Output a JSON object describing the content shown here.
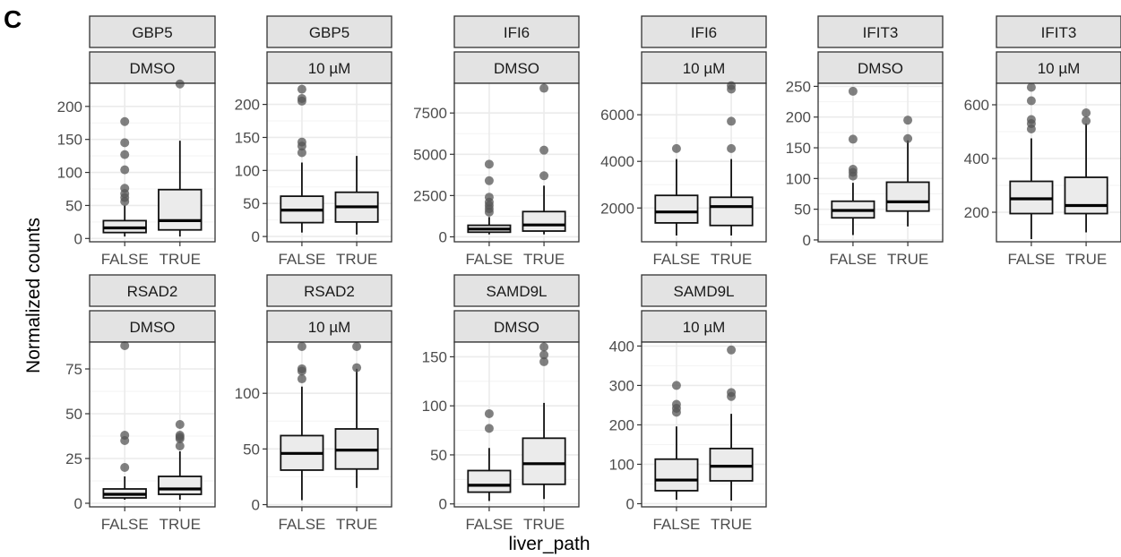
{
  "figure": {
    "panel_letter": "C",
    "ylabel": "Normalized counts",
    "xlabel": "liver_path"
  },
  "colors": {
    "strip_fill": "#e3e3e3",
    "box_fill": "#ebebeb",
    "outlier": "#555555",
    "grid_major": "#ebebeb",
    "panel_border": "#333333"
  },
  "chart_data": [
    {
      "type": "box",
      "gene": "GBP5",
      "treatment": "DMSO",
      "categories": [
        "FALSE",
        "TRUE"
      ],
      "ylim": [
        -5,
        235
      ],
      "yticks": [
        0,
        50,
        100,
        150,
        200
      ],
      "boxes": [
        {
          "min": 3,
          "q1": 9,
          "median": 16,
          "q3": 27,
          "max": 50,
          "outliers": [
            56,
            62,
            68,
            76,
            104,
            127,
            145,
            177
          ]
        },
        {
          "min": 3,
          "q1": 13,
          "median": 27,
          "q3": 74,
          "max": 148,
          "outliers": [
            234
          ]
        }
      ]
    },
    {
      "type": "box",
      "gene": "GBP5",
      "treatment": "10 µM",
      "categories": [
        "FALSE",
        "TRUE"
      ],
      "ylim": [
        -8,
        232
      ],
      "yticks": [
        0,
        50,
        100,
        150,
        200
      ],
      "boxes": [
        {
          "min": 6,
          "q1": 21,
          "median": 40,
          "q3": 61,
          "max": 112,
          "outliers": [
            127,
            137,
            143,
            205,
            209,
            223
          ]
        },
        {
          "min": 3,
          "q1": 22,
          "median": 45,
          "q3": 67,
          "max": 122,
          "outliers": []
        }
      ]
    },
    {
      "type": "box",
      "gene": "IFI6",
      "treatment": "DMSO",
      "categories": [
        "FALSE",
        "TRUE"
      ],
      "ylim": [
        -300,
        9300
      ],
      "yticks": [
        0,
        2500,
        5000,
        7500
      ],
      "boxes": [
        {
          "min": 150,
          "q1": 280,
          "median": 470,
          "q3": 700,
          "max": 1200,
          "outliers": [
            1500,
            1700,
            1900,
            2100,
            2400,
            3400,
            4400
          ]
        },
        {
          "min": 150,
          "q1": 350,
          "median": 720,
          "q3": 1530,
          "max": 3100,
          "outliers": [
            3700,
            5250,
            9000
          ]
        }
      ]
    },
    {
      "type": "box",
      "gene": "IFI6",
      "treatment": "10 µM",
      "categories": [
        "FALSE",
        "TRUE"
      ],
      "ylim": [
        550,
        7350
      ],
      "yticks": [
        2000,
        4000,
        6000
      ],
      "boxes": [
        {
          "min": 820,
          "q1": 1360,
          "median": 1830,
          "q3": 2540,
          "max": 4100,
          "outliers": [
            4550
          ]
        },
        {
          "min": 820,
          "q1": 1250,
          "median": 2060,
          "q3": 2460,
          "max": 4100,
          "outliers": [
            4550,
            5720,
            7100,
            7250
          ]
        }
      ]
    },
    {
      "type": "box",
      "gene": "IFIT3",
      "treatment": "DMSO",
      "categories": [
        "FALSE",
        "TRUE"
      ],
      "ylim": [
        -3,
        255
      ],
      "yticks": [
        0,
        50,
        100,
        150,
        200,
        250
      ],
      "boxes": [
        {
          "min": 8,
          "q1": 36,
          "median": 48,
          "q3": 63,
          "max": 93,
          "outliers": [
            104,
            110,
            115,
            164,
            242
          ]
        },
        {
          "min": 22,
          "q1": 47,
          "median": 62,
          "q3": 94,
          "max": 162,
          "outliers": [
            165,
            195
          ]
        }
      ]
    },
    {
      "type": "box",
      "gene": "IFIT3",
      "treatment": "10 µM",
      "categories": [
        "FALSE",
        "TRUE"
      ],
      "ylim": [
        90,
        680
      ],
      "yticks": [
        200,
        400,
        600
      ],
      "boxes": [
        {
          "min": 100,
          "q1": 195,
          "median": 250,
          "q3": 315,
          "max": 475,
          "outliers": [
            510,
            530,
            545,
            615,
            665
          ]
        },
        {
          "min": 125,
          "q1": 195,
          "median": 225,
          "q3": 330,
          "max": 530,
          "outliers": [
            540,
            570
          ]
        }
      ]
    },
    {
      "type": "box",
      "gene": "RSAD2",
      "treatment": "DMSO",
      "categories": [
        "FALSE",
        "TRUE"
      ],
      "ylim": [
        -2,
        90
      ],
      "yticks": [
        0,
        25,
        50,
        75
      ],
      "boxes": [
        {
          "min": 2,
          "q1": 3,
          "median": 5,
          "q3": 8,
          "max": 15,
          "outliers": [
            20,
            35,
            38,
            88
          ]
        },
        {
          "min": 2,
          "q1": 5,
          "median": 8,
          "q3": 15,
          "max": 29,
          "outliers": [
            32,
            36,
            37,
            38,
            44
          ]
        }
      ]
    },
    {
      "type": "box",
      "gene": "RSAD2",
      "treatment": "10 µM",
      "categories": [
        "FALSE",
        "TRUE"
      ],
      "ylim": [
        -2,
        146
      ],
      "yticks": [
        0,
        50,
        100
      ],
      "boxes": [
        {
          "min": 4,
          "q1": 31,
          "median": 46,
          "q3": 62,
          "max": 106,
          "outliers": [
            113,
            120,
            122,
            142
          ]
        },
        {
          "min": 15,
          "q1": 32,
          "median": 49,
          "q3": 68,
          "max": 122,
          "outliers": [
            123,
            142
          ]
        }
      ]
    },
    {
      "type": "box",
      "gene": "SAMD9L",
      "treatment": "DMSO",
      "categories": [
        "FALSE",
        "TRUE"
      ],
      "ylim": [
        -3,
        165
      ],
      "yticks": [
        0,
        50,
        100,
        150
      ],
      "boxes": [
        {
          "min": 3,
          "q1": 12,
          "median": 19,
          "q3": 34,
          "max": 57,
          "outliers": [
            77,
            92
          ]
        },
        {
          "min": 5,
          "q1": 20,
          "median": 41,
          "q3": 67,
          "max": 103,
          "outliers": [
            145,
            152,
            160
          ]
        }
      ]
    },
    {
      "type": "box",
      "gene": "SAMD9L",
      "treatment": "10 µM",
      "categories": [
        "FALSE",
        "TRUE"
      ],
      "ylim": [
        -8,
        410
      ],
      "yticks": [
        0,
        100,
        200,
        300,
        400
      ],
      "boxes": [
        {
          "min": 10,
          "q1": 33,
          "median": 60,
          "q3": 113,
          "max": 196,
          "outliers": [
            232,
            242,
            252,
            300
          ]
        },
        {
          "min": 8,
          "q1": 58,
          "median": 95,
          "q3": 140,
          "max": 228,
          "outliers": [
            272,
            282,
            390
          ]
        }
      ]
    }
  ]
}
